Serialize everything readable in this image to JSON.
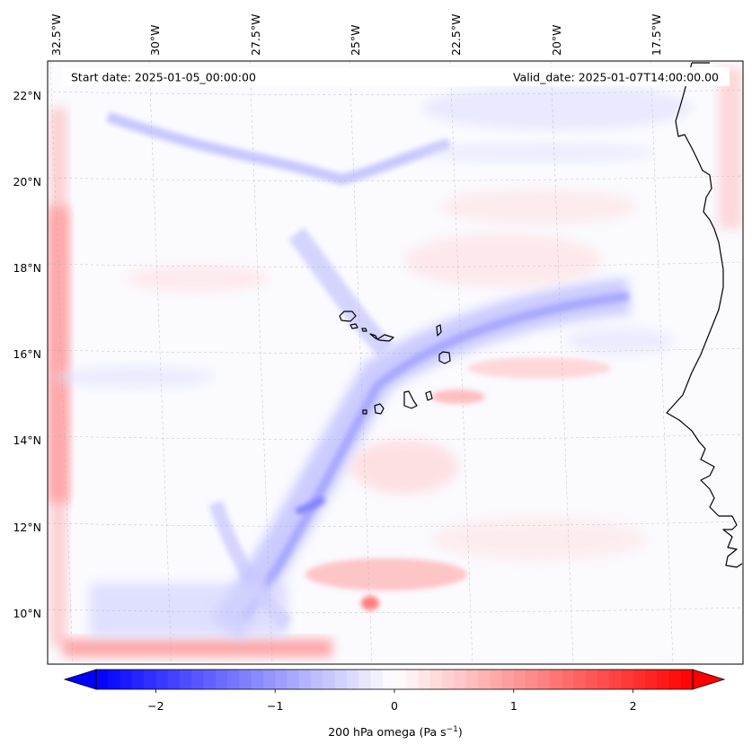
{
  "header": {
    "start_date": "Start date: 2025-01-05_00:00:00",
    "valid_date": "Valid_date: 2025-01-07T14:00:00.00"
  },
  "map": {
    "variable": "200 hPa omega",
    "longitude_labels": [
      "32.5°W",
      "30°W",
      "27.5°W",
      "25°W",
      "22.5°W",
      "20°W",
      "17.5°W"
    ],
    "latitude_labels": [
      "22°N",
      "20°N",
      "18°N",
      "16°N",
      "14°N",
      "12°N",
      "10°N"
    ],
    "extent": {
      "lon": [
        -32.6,
        -15.8
      ],
      "lat": [
        8.8,
        22.8
      ]
    },
    "gridlines": true,
    "coastline_color": "#000000",
    "colormap": "bwr"
  },
  "colorbar": {
    "ticks": [
      "−2",
      "−1",
      "0",
      "1",
      "2"
    ],
    "tick_values": [
      -2,
      -1,
      0,
      1,
      2
    ],
    "range": [
      -2.5,
      2.5
    ],
    "extend": "both",
    "label_text": "200 hPa omega (Pa s",
    "label_sup": "−1",
    "label_close": ")",
    "colors": {
      "negative": "#0000ff",
      "zero": "#ffffff",
      "positive": "#ff0000"
    }
  }
}
